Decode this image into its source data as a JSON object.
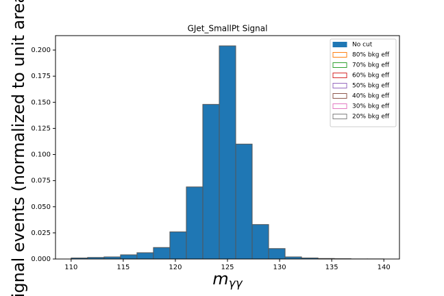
{
  "chart_data": {
    "type": "histogram",
    "title": "GJet_SmallPt Signal",
    "x_label": {
      "main": "m",
      "sub": "γγ"
    },
    "y_label": "Signal events (normalized to unit area)",
    "bins": [
      110,
      111.579,
      113.158,
      114.737,
      116.316,
      117.895,
      119.474,
      121.053,
      122.632,
      124.211,
      125.789,
      127.368,
      128.947,
      130.526,
      132.105,
      133.684,
      135.263,
      136.842,
      138.421,
      140
    ],
    "series": [
      {
        "name": "No cut",
        "color": "#1f77b4",
        "edgecolor": "#555555",
        "values": [
          0.001,
          0.0015,
          0.002,
          0.004,
          0.006,
          0.011,
          0.026,
          0.069,
          0.148,
          0.204,
          0.11,
          0.033,
          0.01,
          0.002,
          0.001,
          0.0005,
          0.0003,
          0.0001,
          0.0001
        ]
      }
    ],
    "legend_entries": [
      {
        "name": "80% bkg eff",
        "color": "#ff7f0e"
      },
      {
        "name": "70% bkg eff",
        "color": "#2ca02c"
      },
      {
        "name": "60% bkg eff",
        "color": "#d62728"
      },
      {
        "name": "50% bkg eff",
        "color": "#9467bd"
      },
      {
        "name": "40% bkg eff",
        "color": "#8c564b"
      },
      {
        "name": "30% bkg eff",
        "color": "#e377c2"
      },
      {
        "name": "20% bkg eff",
        "color": "#7f7f7f"
      }
    ],
    "legend_position": "upper right",
    "xlim": [
      108.5,
      141.5
    ],
    "ylim": [
      0,
      0.2138
    ],
    "xticks": [
      110,
      115,
      120,
      125,
      130,
      135,
      140
    ],
    "yticks": [
      {
        "value": 0,
        "label": "0.000"
      },
      0.025,
      {
        "value": 0.05,
        "label": "0.050"
      },
      0.075,
      {
        "value": 0.1,
        "label": "0.100"
      },
      0.125,
      {
        "value": 0.15,
        "label": "0.150"
      },
      0.175,
      {
        "value": 0.2,
        "label": "0.200"
      }
    ],
    "grid": false
  }
}
